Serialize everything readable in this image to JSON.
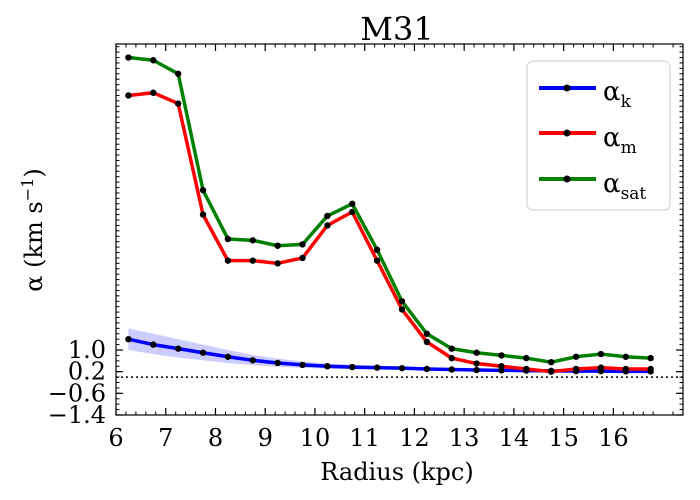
{
  "chart_data": {
    "type": "line",
    "title": "M31",
    "xlabel": "Radius (kpc)",
    "ylabel": "α (km s",
    "ylabel_sup": "−1",
    "ylabel_close": ")",
    "xlim": [
      6.0,
      17.4
    ],
    "ylim": [
      -1.4,
      12.3
    ],
    "xticks": [
      6,
      7,
      8,
      9,
      10,
      11,
      12,
      13,
      14,
      15,
      16
    ],
    "xtick_labels": [
      "6",
      "7",
      "8",
      "9",
      "10",
      "11",
      "12",
      "13",
      "14",
      "15",
      "16"
    ],
    "yticks": [
      1.0,
      0.2,
      -0.6,
      -1.4
    ],
    "ytick_labels": [
      "1.0",
      "0.2",
      "−0.6",
      "−1.4"
    ],
    "zero_line": 0,
    "grid": false,
    "legend_position": "top-right",
    "x": [
      6.25,
      6.75,
      7.25,
      7.75,
      8.25,
      8.75,
      9.25,
      9.75,
      10.25,
      10.75,
      11.25,
      11.75,
      12.25,
      12.75,
      13.25,
      13.75,
      14.25,
      14.75,
      15.25,
      15.75,
      16.25,
      16.75
    ],
    "series": [
      {
        "name": "α",
        "name_sub": "k",
        "color": "#0000ff",
        "values": [
          1.4,
          1.2,
          1.05,
          0.9,
          0.75,
          0.62,
          0.52,
          0.45,
          0.4,
          0.37,
          0.35,
          0.33,
          0.3,
          0.28,
          0.26,
          0.25,
          0.24,
          0.23,
          0.22,
          0.22,
          0.21,
          0.21
        ],
        "band_upper": [
          1.8,
          1.6,
          1.4,
          1.2,
          1.0,
          0.82,
          0.68,
          0.58,
          0.5,
          0.46,
          0.42,
          0.39,
          0.36,
          0.34,
          0.32,
          0.3,
          0.29,
          0.28,
          0.27,
          0.27,
          0.26,
          0.26
        ],
        "band_lower": [
          1.0,
          0.85,
          0.72,
          0.62,
          0.52,
          0.44,
          0.38,
          0.34,
          0.31,
          0.29,
          0.28,
          0.27,
          0.25,
          0.23,
          0.21,
          0.2,
          0.19,
          0.18,
          0.17,
          0.17,
          0.16,
          0.16
        ]
      },
      {
        "name": "α",
        "name_sub": "m",
        "color": "#ff0000",
        "values": [
          10.4,
          10.5,
          10.1,
          6.0,
          4.3,
          4.3,
          4.2,
          4.4,
          5.6,
          6.1,
          4.3,
          2.5,
          1.3,
          0.7,
          0.5,
          0.4,
          0.3,
          0.2,
          0.3,
          0.35,
          0.3,
          0.3
        ]
      },
      {
        "name": "α",
        "name_sub": "sat",
        "color": "#008000",
        "values": [
          11.8,
          11.7,
          11.2,
          6.9,
          5.1,
          5.05,
          4.85,
          4.9,
          5.95,
          6.4,
          4.7,
          2.8,
          1.6,
          1.05,
          0.9,
          0.8,
          0.7,
          0.55,
          0.75,
          0.85,
          0.75,
          0.7
        ]
      }
    ]
  }
}
